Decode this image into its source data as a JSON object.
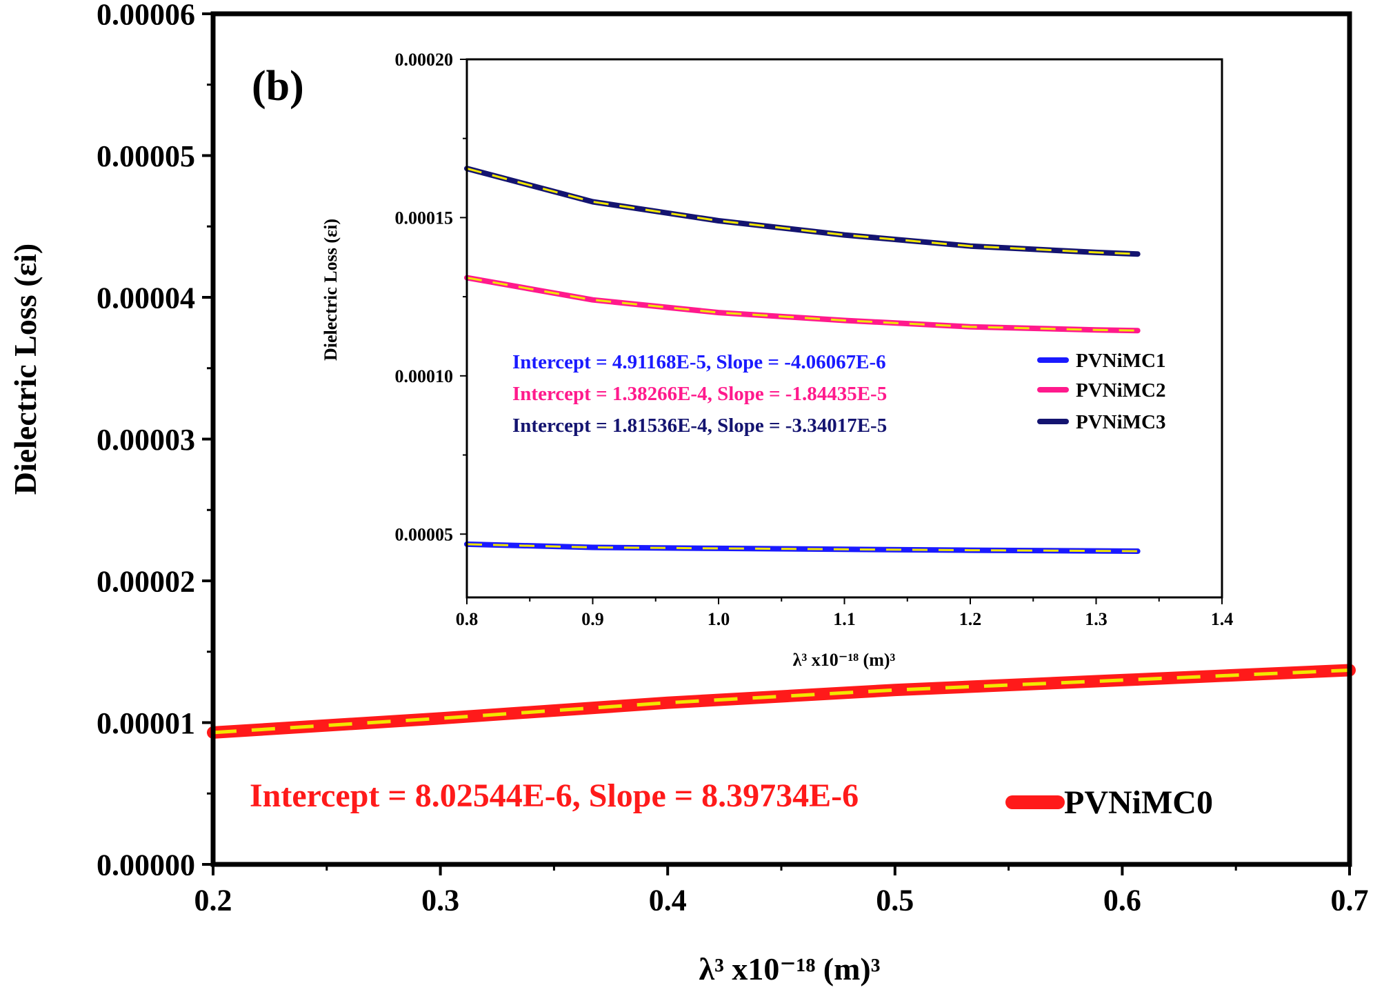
{
  "panel_label": "(b)",
  "colors": {
    "pvnimc0": "#ff1a1a",
    "pvnimc1": "#1a1aff",
    "pvnimc2": "#ff1a8c",
    "pvnimc3": "#141470",
    "fit_line": "#f2e600",
    "axis": "#000000"
  },
  "chart_data": [
    {
      "id": "main",
      "type": "line",
      "xlabel": "λ³ x10⁻¹⁸  (m)³",
      "ylabel": "Dielectric Loss (εi)",
      "xlim": [
        0.2,
        0.7
      ],
      "ylim": [
        0,
        6e-05
      ],
      "xticks": [
        "0.2",
        "0.3",
        "0.4",
        "0.5",
        "0.6",
        "0.7"
      ],
      "xtick_values": [
        0.2,
        0.3,
        0.4,
        0.5,
        0.6,
        0.7
      ],
      "yticks": [
        "0.00000",
        "0.00001",
        "0.00002",
        "0.00003",
        "0.00004",
        "0.00005",
        "0.00006"
      ],
      "ytick_values": [
        0,
        1e-05,
        2e-05,
        3e-05,
        4e-05,
        5e-05,
        6e-05
      ],
      "series": [
        {
          "name": "PVNiMC0",
          "color_key": "pvnimc0",
          "x": [
            0.2,
            0.3,
            0.4,
            0.5,
            0.6,
            0.7
          ],
          "y": [
            9.3e-06,
            1.03e-05,
            1.14e-05,
            1.23e-05,
            1.3e-05,
            1.37e-05
          ]
        }
      ],
      "fit_annotations": [
        {
          "text": "Intercept = 8.02544E-6, Slope = 8.39734E-6",
          "color_key": "pvnimc0"
        }
      ],
      "legend": [
        {
          "label": "PVNiMC0",
          "color_key": "pvnimc0"
        }
      ]
    },
    {
      "id": "inset",
      "type": "line",
      "xlabel": "λ³ x10⁻¹⁸  (m)³",
      "ylabel": "Dielectric Loss (εi)",
      "xlim": [
        0.8,
        1.4
      ],
      "ylim": [
        3e-05,
        0.0002
      ],
      "xticks": [
        "0.8",
        "0.9",
        "1.0",
        "1.1",
        "1.2",
        "1.3",
        "1.4"
      ],
      "xtick_values": [
        0.8,
        0.9,
        1.0,
        1.1,
        1.2,
        1.3,
        1.4
      ],
      "yticks": [
        "0.00005",
        "0.00010",
        "0.00015",
        "0.00020"
      ],
      "ytick_values": [
        5e-05,
        0.0001,
        0.00015,
        0.0002
      ],
      "series": [
        {
          "name": "PVNiMC1",
          "color_key": "pvnimc1",
          "x": [
            0.8,
            0.9,
            1.0,
            1.1,
            1.2,
            1.3,
            1.333
          ],
          "y": [
            4.68e-05,
            4.58e-05,
            4.55e-05,
            4.52e-05,
            4.49e-05,
            4.47e-05,
            4.46e-05
          ]
        },
        {
          "name": "PVNiMC2",
          "color_key": "pvnimc2",
          "x": [
            0.8,
            0.9,
            1.0,
            1.1,
            1.2,
            1.3,
            1.333
          ],
          "y": [
            0.000131,
            0.000124,
            0.00012,
            0.0001175,
            0.0001155,
            0.0001145,
            0.0001143
          ]
        },
        {
          "name": "PVNiMC3",
          "color_key": "pvnimc3",
          "x": [
            0.8,
            0.9,
            1.0,
            1.1,
            1.2,
            1.3,
            1.333
          ],
          "y": [
            0.0001655,
            0.000155,
            0.000149,
            0.0001445,
            0.000141,
            0.000139,
            0.0001385
          ]
        }
      ],
      "fit_annotations": [
        {
          "text": "Intercept = 4.91168E-5, Slope = -4.06067E-6",
          "color_key": "pvnimc1"
        },
        {
          "text": "Intercept = 1.38266E-4, Slope = -1.84435E-5",
          "color_key": "pvnimc2"
        },
        {
          "text": "Intercept = 1.81536E-4, Slope = -3.34017E-5",
          "color_key": "pvnimc3"
        }
      ],
      "legend": [
        {
          "label": "PVNiMC1",
          "color_key": "pvnimc1"
        },
        {
          "label": "PVNiMC2",
          "color_key": "pvnimc2"
        },
        {
          "label": "PVNiMC3",
          "color_key": "pvnimc3"
        }
      ]
    }
  ]
}
